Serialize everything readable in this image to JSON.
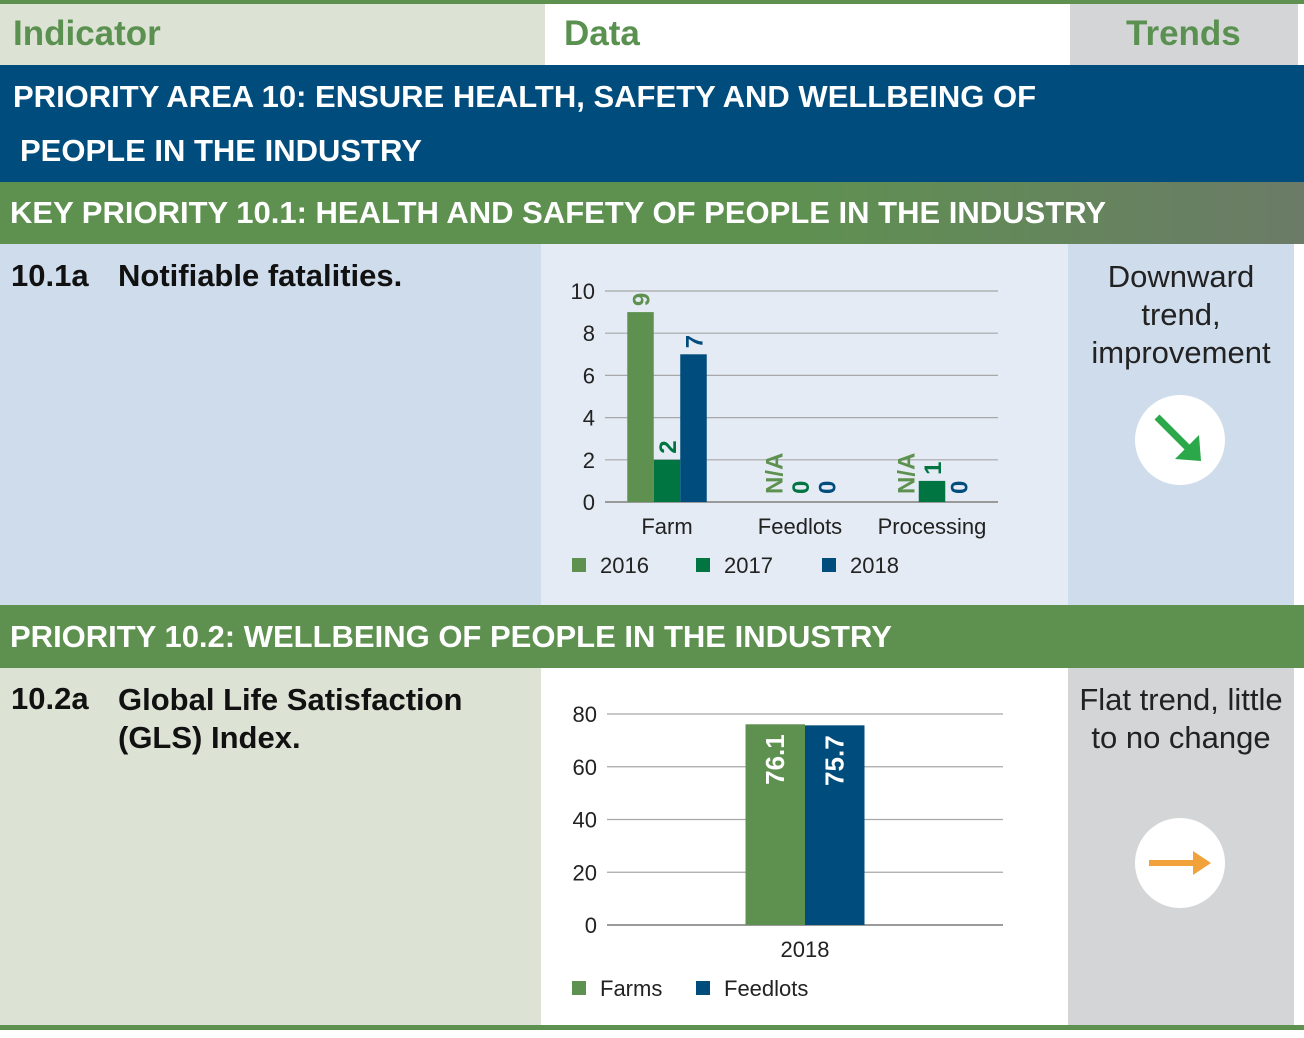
{
  "header": {
    "indicator": "Indicator",
    "data": "Data",
    "trends": "Trends"
  },
  "priority_area": {
    "line1": "PRIORITY AREA 10: ENSURE HEALTH, SAFETY AND WELLBEING OF",
    "line2": "PEOPLE IN THE INDUSTRY"
  },
  "key_priority_1": "KEY PRIORITY 10.1: HEALTH AND SAFETY OF PEOPLE IN THE INDUSTRY",
  "key_priority_2": "PRIORITY 10.2: WELLBEING OF PEOPLE IN THE INDUSTRY",
  "row1": {
    "code": "10.1a",
    "label": "Notifiable fatalities.",
    "trend": "Downward trend, improvement",
    "trend_icon": "arrow-down-right",
    "trend_color": "#2aa84a"
  },
  "row2": {
    "code": "10.2a",
    "label": "Global Life Satisfaction (GLS) Index.",
    "trend": "Flat trend, little to no change",
    "trend_icon": "arrow-right",
    "trend_color": "#f2a23a"
  },
  "colors": {
    "green": "#5e9150",
    "dark_green": "#007542",
    "blue": "#004c7c"
  },
  "chart_data": [
    {
      "type": "bar",
      "title": "Notifiable fatalities",
      "categories": [
        "Farm",
        "Feedlots",
        "Processing"
      ],
      "series": [
        {
          "name": "2016",
          "color": "#5e9150",
          "values": [
            9,
            null,
            null
          ],
          "labels": [
            "9",
            "N/A",
            "N/A"
          ]
        },
        {
          "name": "2017",
          "color": "#007542",
          "values": [
            2,
            0,
            1
          ],
          "labels": [
            "2",
            "0",
            "1"
          ]
        },
        {
          "name": "2018",
          "color": "#004c7c",
          "values": [
            7,
            0,
            0
          ],
          "labels": [
            "7",
            "0",
            "0"
          ]
        }
      ],
      "ylim": [
        0,
        10
      ],
      "yticks": [
        "0",
        "2",
        "4",
        "6",
        "8",
        "10"
      ],
      "grid": true,
      "legend": "bottom"
    },
    {
      "type": "bar",
      "title": "Global Life Satisfaction (GLS) Index",
      "categories": [
        "2018"
      ],
      "series": [
        {
          "name": "Farms",
          "color": "#5e9150",
          "values": [
            76.1
          ],
          "labels": [
            "76.1"
          ]
        },
        {
          "name": "Feedlots",
          "color": "#004c7c",
          "values": [
            75.7
          ],
          "labels": [
            "75.7"
          ]
        }
      ],
      "ylim": [
        0,
        80
      ],
      "yticks": [
        "0",
        "20",
        "40",
        "60",
        "80"
      ],
      "grid": true,
      "legend": "bottom"
    }
  ]
}
